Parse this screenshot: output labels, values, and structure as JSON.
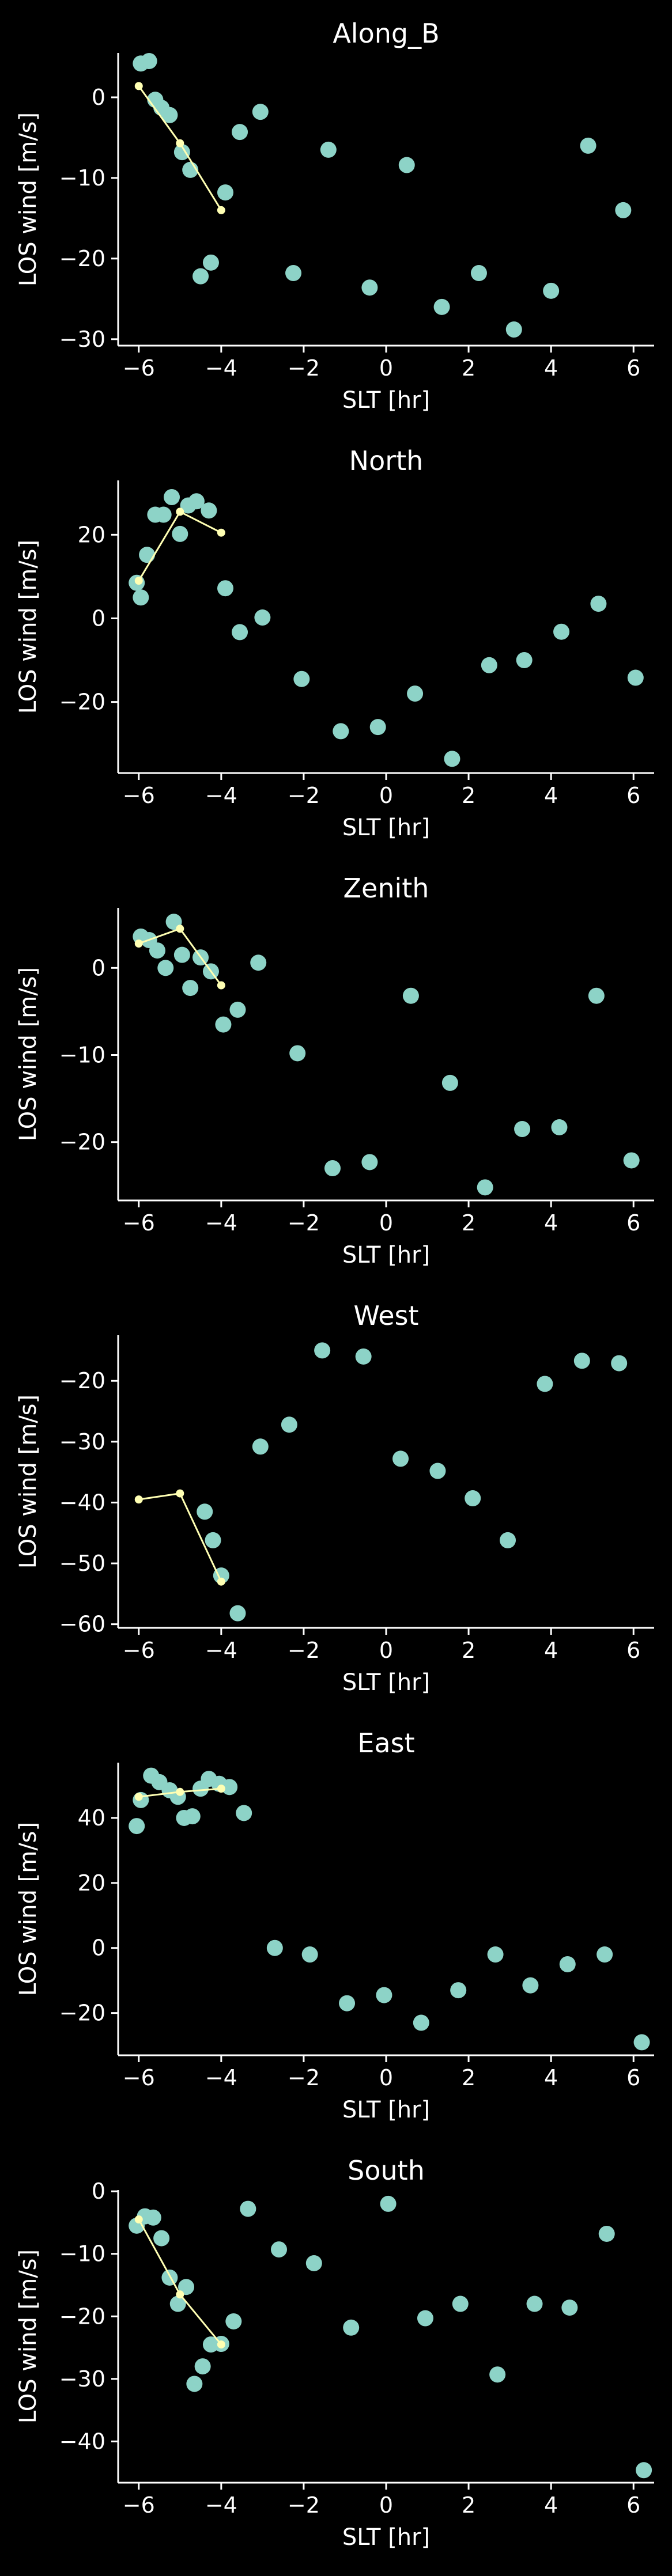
{
  "figure": {
    "background": "#000000",
    "foreground": "#ffffff",
    "scatter_color": "#8dd3c7",
    "line_color": "#ffffb3"
  },
  "chart_data": [
    {
      "type": "scatter",
      "title": "Along_B",
      "xlabel": "SLT [hr]",
      "ylabel": "LOS wind [m/s]",
      "xlim": [
        -6.5,
        6.5
      ],
      "ylim": [
        -30.8,
        5.5
      ],
      "xticks": [
        -6,
        -4,
        -2,
        0,
        2,
        4,
        6
      ],
      "yticks": [
        -30,
        -20,
        -10,
        0
      ],
      "grid": false,
      "series": [
        {
          "kind": "scatter",
          "x": [
            -5.95,
            -5.75,
            -5.6,
            -5.45,
            -5.25,
            -4.95,
            -4.75,
            -4.5,
            -4.25,
            -3.9,
            -3.55,
            -3.05,
            -2.25,
            -1.4,
            -0.4,
            0.5,
            1.35,
            2.25,
            3.1,
            4.0,
            4.9,
            5.75
          ],
          "y": [
            4.2,
            4.5,
            -0.3,
            -1.3,
            -2.2,
            -6.8,
            -9.0,
            -22.2,
            -20.5,
            -11.8,
            -4.3,
            -1.8,
            -21.8,
            -6.5,
            -23.6,
            -8.4,
            -26.0,
            -21.8,
            -28.8,
            -24.0,
            -6.0,
            -14.0
          ]
        },
        {
          "kind": "line",
          "x": [
            -6,
            -5,
            -4
          ],
          "y": [
            1.4,
            -5.7,
            -14.0
          ]
        }
      ]
    },
    {
      "type": "scatter",
      "title": "North",
      "xlabel": "SLT [hr]",
      "ylabel": "LOS wind [m/s]",
      "xlim": [
        -6.5,
        6.5
      ],
      "ylim": [
        -37,
        33
      ],
      "xticks": [
        -6,
        -4,
        -2,
        0,
        2,
        4,
        6
      ],
      "yticks": [
        -20,
        0,
        20
      ],
      "grid": false,
      "series": [
        {
          "kind": "scatter",
          "x": [
            -6.05,
            -5.95,
            -5.8,
            -5.6,
            -5.4,
            -5.2,
            -5.0,
            -4.8,
            -4.6,
            -4.3,
            -3.9,
            -3.55,
            -3.0,
            -2.05,
            -1.1,
            -0.2,
            0.7,
            1.6,
            2.5,
            3.35,
            4.25,
            5.15,
            6.05
          ],
          "y": [
            8.5,
            5.0,
            15.2,
            24.8,
            24.8,
            29.0,
            20.2,
            27.0,
            28.0,
            25.8,
            7.2,
            -3.3,
            0.2,
            -14.5,
            -27.0,
            -26.0,
            -18.0,
            -33.6,
            -11.2,
            -10.0,
            -3.2,
            3.5,
            -14.2
          ]
        },
        {
          "kind": "line",
          "x": [
            -6,
            -5,
            -4
          ],
          "y": [
            9.0,
            25.5,
            20.5
          ]
        }
      ]
    },
    {
      "type": "scatter",
      "title": "Zenith",
      "xlabel": "SLT [hr]",
      "ylabel": "LOS wind [m/s]",
      "xlim": [
        -6.5,
        6.5
      ],
      "ylim": [
        -26.7,
        6.9
      ],
      "xticks": [
        -6,
        -4,
        -2,
        0,
        2,
        4,
        6
      ],
      "yticks": [
        -20,
        -10,
        0
      ],
      "grid": false,
      "series": [
        {
          "kind": "scatter",
          "x": [
            -5.95,
            -5.75,
            -5.55,
            -5.35,
            -5.15,
            -4.95,
            -4.75,
            -4.5,
            -4.25,
            -3.95,
            -3.6,
            -3.1,
            -2.15,
            -1.3,
            -0.4,
            0.6,
            1.55,
            2.4,
            3.3,
            4.2,
            5.1,
            5.95
          ],
          "y": [
            3.6,
            3.2,
            2.0,
            0.0,
            5.3,
            1.5,
            -2.3,
            1.2,
            -0.4,
            -6.5,
            -4.8,
            0.6,
            -9.8,
            -23.0,
            -22.3,
            -3.2,
            -13.2,
            -25.2,
            -18.5,
            -18.3,
            -3.2,
            -22.1
          ]
        },
        {
          "kind": "line",
          "x": [
            -6,
            -5,
            -4
          ],
          "y": [
            2.8,
            4.5,
            -2.0
          ]
        }
      ]
    },
    {
      "type": "scatter",
      "title": "West",
      "xlabel": "SLT [hr]",
      "ylabel": "LOS wind [m/s]",
      "xlim": [
        -6.5,
        6.5
      ],
      "ylim": [
        -60.6,
        -12.5
      ],
      "xticks": [
        -6,
        -4,
        -2,
        0,
        2,
        4,
        6
      ],
      "yticks": [
        -60,
        -50,
        -40,
        -30,
        -20
      ],
      "grid": false,
      "series": [
        {
          "kind": "scatter",
          "x": [
            -4.4,
            -4.2,
            -4.0,
            -3.6,
            -3.05,
            -2.35,
            -1.55,
            -0.55,
            0.35,
            1.25,
            2.1,
            2.95,
            3.85,
            4.75,
            5.65
          ],
          "y": [
            -41.5,
            -46.2,
            -52.0,
            -58.2,
            -30.8,
            -27.2,
            -15.0,
            -16.0,
            -32.8,
            -34.8,
            -39.3,
            -46.2,
            -20.5,
            -16.7,
            -17.1
          ]
        },
        {
          "kind": "line",
          "x": [
            -6,
            -5,
            -4
          ],
          "y": [
            -39.5,
            -38.5,
            -53.0
          ]
        }
      ]
    },
    {
      "type": "scatter",
      "title": "East",
      "xlabel": "SLT [hr]",
      "ylabel": "LOS wind [m/s]",
      "xlim": [
        -6.5,
        6.5
      ],
      "ylim": [
        -33,
        57
      ],
      "xticks": [
        -6,
        -4,
        -2,
        0,
        2,
        4,
        6
      ],
      "yticks": [
        -20,
        0,
        20,
        40
      ],
      "grid": false,
      "series": [
        {
          "kind": "scatter",
          "x": [
            -6.05,
            -5.95,
            -5.7,
            -5.5,
            -5.25,
            -5.05,
            -4.9,
            -4.7,
            -4.5,
            -4.3,
            -4.05,
            -3.8,
            -3.45,
            -2.7,
            -1.85,
            -0.95,
            -0.05,
            0.85,
            1.75,
            2.65,
            3.5,
            4.4,
            5.3,
            6.2
          ],
          "y": [
            37.5,
            45.5,
            53.0,
            51.0,
            48.5,
            46.5,
            40.0,
            40.5,
            49.0,
            52.0,
            50.5,
            49.5,
            41.5,
            0.0,
            -2.0,
            -17.0,
            -14.5,
            -23.0,
            -13.0,
            -2.0,
            -11.5,
            -5.0,
            -2.0,
            -29.0
          ]
        },
        {
          "kind": "line",
          "x": [
            -6,
            -5,
            -4
          ],
          "y": [
            46.5,
            48.0,
            49.0
          ]
        }
      ]
    },
    {
      "type": "scatter",
      "title": "South",
      "xlabel": "SLT [hr]",
      "ylabel": "LOS wind [m/s]",
      "xlim": [
        -6.5,
        6.5
      ],
      "ylim": [
        -46.6,
        0.2
      ],
      "xticks": [
        -6,
        -4,
        -2,
        0,
        2,
        4,
        6
      ],
      "yticks": [
        -40,
        -30,
        -20,
        -10,
        0
      ],
      "grid": false,
      "series": [
        {
          "kind": "scatter",
          "x": [
            -6.05,
            -5.85,
            -5.65,
            -5.45,
            -5.25,
            -5.05,
            -4.85,
            -4.65,
            -4.45,
            -4.25,
            -4.0,
            -3.7,
            -3.35,
            -2.6,
            -1.75,
            -0.85,
            0.05,
            0.95,
            1.8,
            2.7,
            3.6,
            4.45,
            5.35,
            6.25
          ],
          "y": [
            -5.5,
            -4.0,
            -4.2,
            -7.5,
            -13.8,
            -18.0,
            -15.3,
            -30.8,
            -28.0,
            -24.5,
            -24.4,
            -20.8,
            -2.8,
            -9.3,
            -11.5,
            -21.8,
            -2.0,
            -20.3,
            -18.0,
            -29.3,
            -18.0,
            -18.6,
            -6.8,
            -44.6
          ]
        },
        {
          "kind": "line",
          "x": [
            -6,
            -5,
            -4
          ],
          "y": [
            -4.5,
            -16.5,
            -24.5
          ]
        }
      ]
    }
  ]
}
